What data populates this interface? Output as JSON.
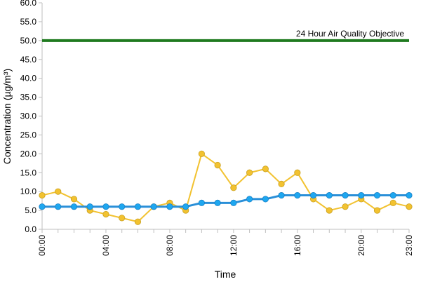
{
  "chart_data": {
    "type": "line",
    "xlabel": "Time",
    "ylabel": "Concentration (µg/m³)",
    "ylim": [
      0,
      60
    ],
    "y_ticks": [
      "0.0",
      "5.0",
      "10.0",
      "15.0",
      "20.0",
      "25.0",
      "30.0",
      "35.0",
      "40.0",
      "45.0",
      "50.0",
      "55.0",
      "60.0"
    ],
    "x_ticks": [
      "00:00",
      "04:00",
      "08:00",
      "12:00",
      "16:00",
      "20:00",
      "23:00"
    ],
    "x_tick_hours": [
      0,
      4,
      8,
      12,
      16,
      20,
      23
    ],
    "x_hours": [
      0,
      1,
      2,
      3,
      4,
      5,
      6,
      7,
      8,
      9,
      10,
      11,
      12,
      13,
      14,
      15,
      16,
      17,
      18,
      19,
      20,
      21,
      22,
      23
    ],
    "grid": false,
    "series": [
      {
        "color": "#f2c230",
        "marker_fill": "#f2c230",
        "values": [
          9,
          10,
          8,
          5,
          4,
          3,
          2,
          6,
          7,
          5,
          20,
          17,
          11,
          15,
          16,
          12,
          15,
          8,
          5,
          6,
          8,
          5,
          7,
          6
        ]
      },
      {
        "color": "#2a8fd8",
        "marker_fill": "#1ea7f0",
        "values": [
          6,
          6,
          6,
          6,
          6,
          6,
          6,
          6,
          6,
          6,
          7,
          7,
          7,
          8,
          8,
          9,
          9,
          9,
          9,
          9,
          9,
          9,
          9,
          9
        ]
      }
    ],
    "reference_line": {
      "value": 50,
      "label": "24 Hour Air Quality Objective",
      "color": "#1f7a1f"
    }
  }
}
